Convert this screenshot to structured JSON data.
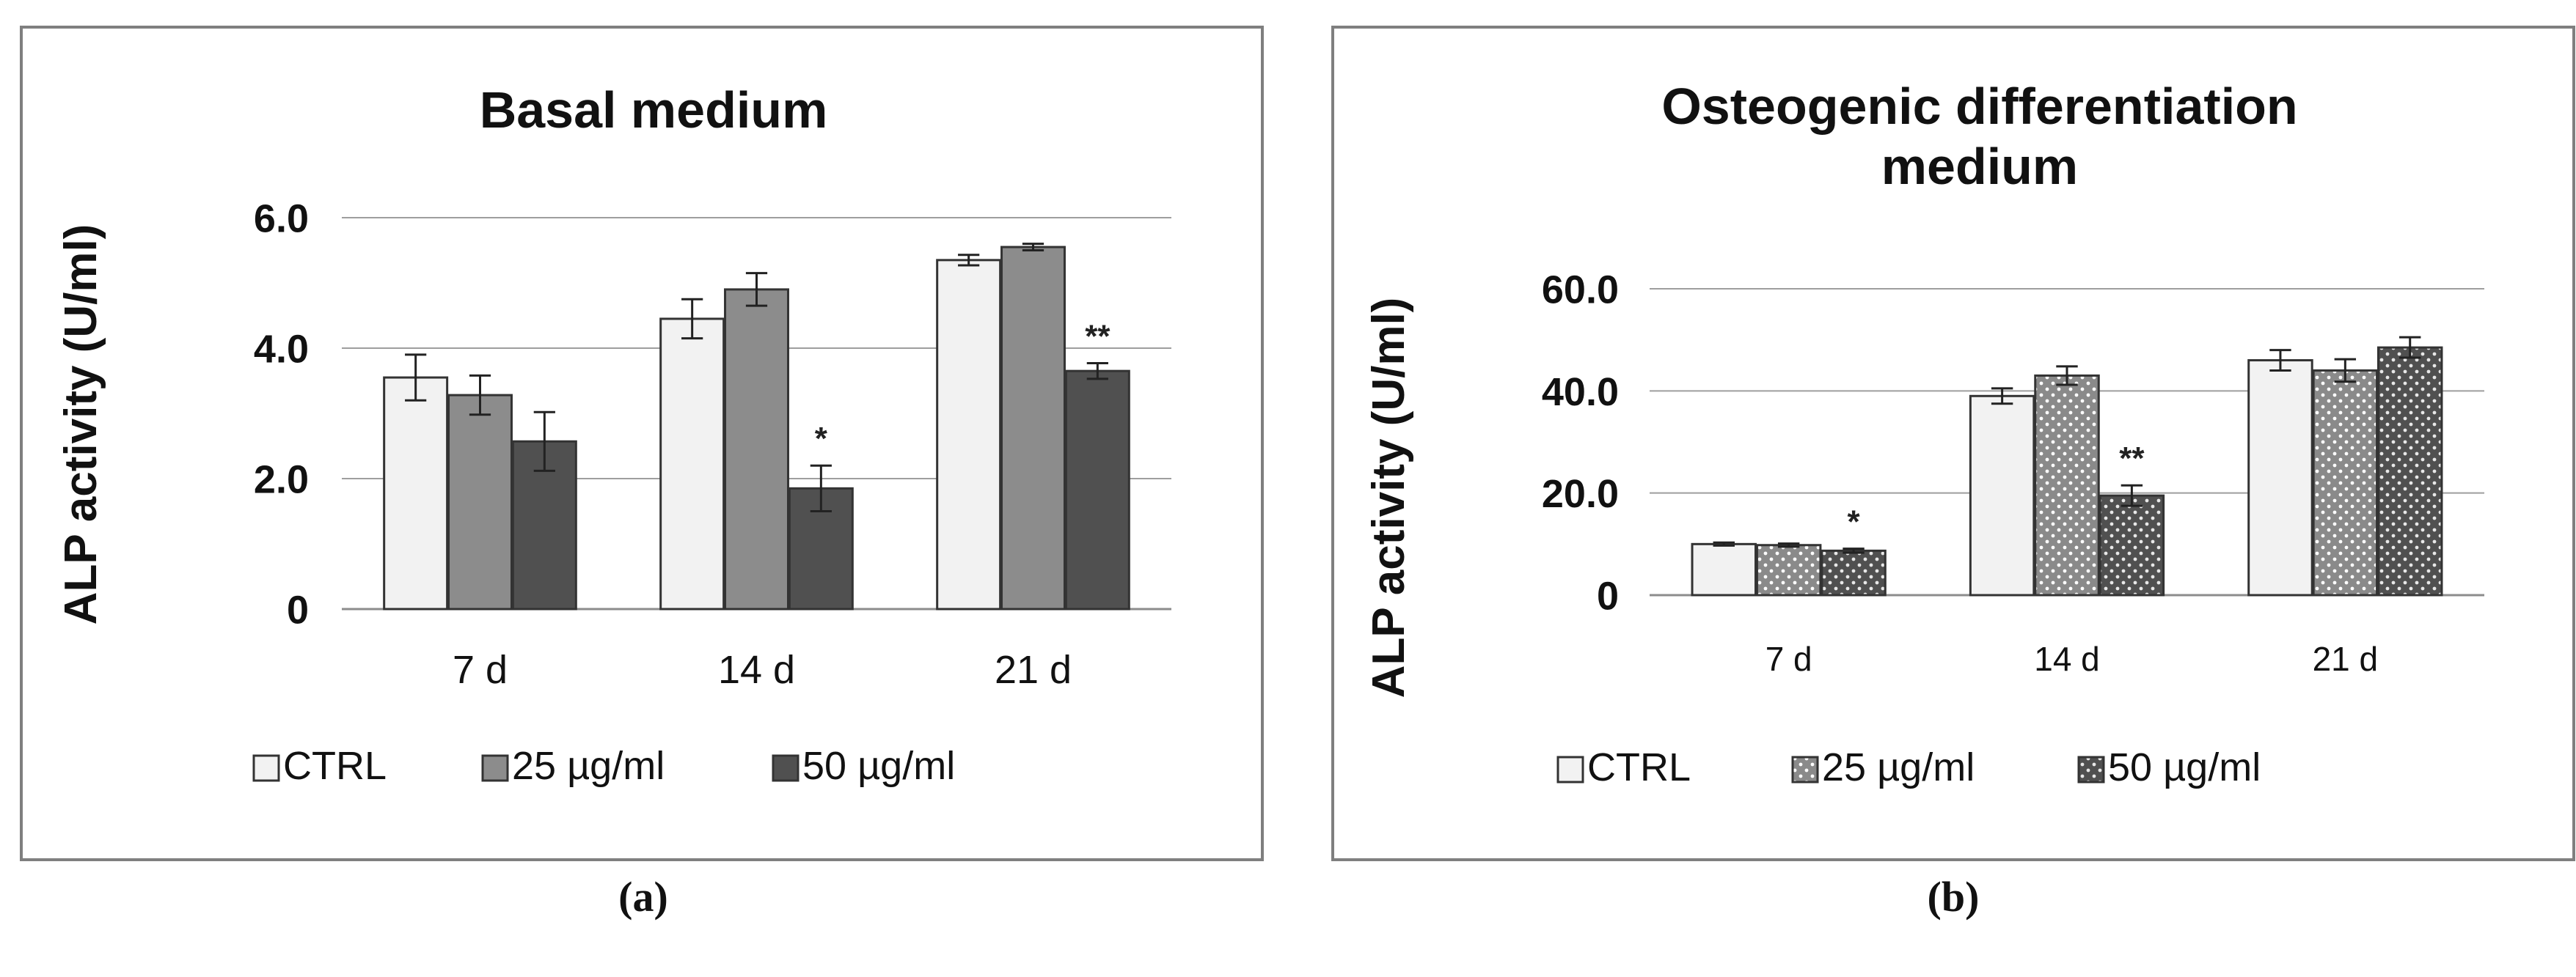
{
  "chart_data": [
    {
      "type": "bar",
      "title": "Basal medium",
      "xlabel": "",
      "ylabel": "ALP activity (U/ml)",
      "categories": [
        "7 d",
        "14 d",
        "21 d"
      ],
      "ylim": [
        0,
        6.0
      ],
      "yticks": [
        "0",
        "2.0",
        "4.0",
        "6.0"
      ],
      "grid": true,
      "legend_position": "bottom",
      "series": [
        {
          "name": "CTRL",
          "values": [
            3.55,
            4.45,
            5.35
          ],
          "errors": [
            0.35,
            0.3,
            0.08
          ]
        },
        {
          "name": "25 µg/ml",
          "values": [
            3.28,
            4.9,
            5.55
          ],
          "errors": [
            0.3,
            0.25,
            0.05
          ]
        },
        {
          "name": "50 µg/ml",
          "values": [
            2.57,
            1.85,
            3.65
          ],
          "errors": [
            0.45,
            0.35,
            0.12
          ]
        }
      ],
      "annotations": [
        {
          "category": "14 d",
          "series": "50 µg/ml",
          "text": "*"
        },
        {
          "category": "21 d",
          "series": "50 µg/ml",
          "text": "**"
        }
      ]
    },
    {
      "type": "bar",
      "title": "Osteogenic differentiation medium",
      "xlabel": "",
      "ylabel": "ALP activity (U/ml)",
      "categories": [
        "7 d",
        "14 d",
        "21 d"
      ],
      "ylim": [
        0,
        60.0
      ],
      "yticks": [
        "0",
        "20.0",
        "40.0",
        "60.0"
      ],
      "grid": true,
      "legend_position": "bottom",
      "series": [
        {
          "name": "CTRL",
          "values": [
            10.0,
            39.0,
            46.0
          ],
          "errors": [
            0.3,
            1.5,
            2.0
          ]
        },
        {
          "name": "25 µg/ml",
          "values": [
            9.8,
            43.0,
            44.0
          ],
          "errors": [
            0.3,
            1.8,
            2.2
          ]
        },
        {
          "name": "50 µg/ml",
          "values": [
            8.7,
            19.5,
            48.5
          ],
          "errors": [
            0.4,
            2.0,
            2.0
          ]
        }
      ],
      "annotations": [
        {
          "category": "7 d",
          "series": "50 µg/ml",
          "text": "*"
        },
        {
          "category": "14 d",
          "series": "50 µg/ml",
          "text": "**"
        }
      ]
    }
  ],
  "panel_labels": {
    "a": "(a)",
    "b": "(b)"
  }
}
